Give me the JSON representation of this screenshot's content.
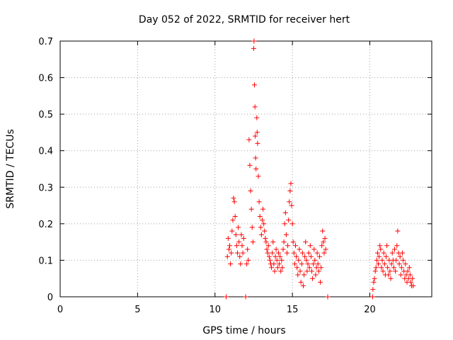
{
  "chart_data": {
    "type": "scatter",
    "title": "Day 052 of 2022, SRMTID for receiver hert",
    "xlabel": "GPS time / hours",
    "ylabel": "SRMTID / TECUs",
    "xlim": [
      0,
      24
    ],
    "ylim": [
      0,
      0.7
    ],
    "xticks": [
      0,
      5,
      10,
      15,
      20
    ],
    "xtick_labels": [
      "0",
      "5",
      "10",
      "15",
      "20"
    ],
    "yticks": [
      0,
      0.1,
      0.2,
      0.3,
      0.4,
      0.5,
      0.6,
      0.7
    ],
    "ytick_labels": [
      "0",
      "0.1",
      "0.2",
      "0.3",
      "0.4",
      "0.5",
      "0.6",
      "0.7"
    ],
    "grid": true,
    "legend": "none",
    "marker": "plus",
    "marker_color": "#ff0000",
    "series": [
      {
        "values": [
          [
            10.72,
            0.0
          ],
          [
            11.98,
            0.0
          ],
          [
            17.28,
            0.0
          ],
          [
            20.18,
            0.0
          ],
          [
            10.8,
            0.11
          ],
          [
            10.85,
            0.16
          ],
          [
            10.9,
            0.13
          ],
          [
            10.95,
            0.14
          ],
          [
            11.0,
            0.09
          ],
          [
            11.05,
            0.12
          ],
          [
            11.1,
            0.18
          ],
          [
            11.15,
            0.21
          ],
          [
            11.2,
            0.27
          ],
          [
            11.25,
            0.26
          ],
          [
            11.3,
            0.22
          ],
          [
            11.35,
            0.17
          ],
          [
            11.4,
            0.14
          ],
          [
            11.45,
            0.12
          ],
          [
            11.5,
            0.19
          ],
          [
            11.55,
            0.15
          ],
          [
            11.6,
            0.11
          ],
          [
            11.65,
            0.09
          ],
          [
            11.7,
            0.17
          ],
          [
            11.75,
            0.14
          ],
          [
            11.8,
            0.12
          ],
          [
            11.85,
            0.16
          ],
          [
            12.05,
            0.09
          ],
          [
            12.1,
            0.13
          ],
          [
            12.15,
            0.1
          ],
          [
            12.2,
            0.43
          ],
          [
            12.25,
            0.36
          ],
          [
            12.3,
            0.29
          ],
          [
            12.35,
            0.24
          ],
          [
            12.4,
            0.19
          ],
          [
            12.45,
            0.15
          ],
          [
            12.5,
            0.68
          ],
          [
            12.52,
            0.7
          ],
          [
            12.55,
            0.58
          ],
          [
            12.58,
            0.52
          ],
          [
            12.6,
            0.44
          ],
          [
            12.62,
            0.38
          ],
          [
            12.65,
            0.35
          ],
          [
            12.7,
            0.49
          ],
          [
            12.72,
            0.45
          ],
          [
            12.75,
            0.42
          ],
          [
            12.8,
            0.33
          ],
          [
            12.85,
            0.26
          ],
          [
            12.9,
            0.22
          ],
          [
            12.95,
            0.19
          ],
          [
            13.0,
            0.17
          ],
          [
            13.05,
            0.21
          ],
          [
            13.1,
            0.24
          ],
          [
            13.15,
            0.2
          ],
          [
            13.2,
            0.18
          ],
          [
            13.25,
            0.16
          ],
          [
            13.3,
            0.15
          ],
          [
            13.35,
            0.13
          ],
          [
            13.4,
            0.12
          ],
          [
            13.45,
            0.14
          ],
          [
            13.5,
            0.11
          ],
          [
            13.55,
            0.1
          ],
          [
            13.6,
            0.09
          ],
          [
            13.65,
            0.08
          ],
          [
            13.7,
            0.12
          ],
          [
            13.75,
            0.15
          ],
          [
            13.8,
            0.09
          ],
          [
            13.85,
            0.07
          ],
          [
            13.9,
            0.11
          ],
          [
            13.95,
            0.13
          ],
          [
            14.0,
            0.1
          ],
          [
            14.05,
            0.08
          ],
          [
            14.1,
            0.12
          ],
          [
            14.15,
            0.09
          ],
          [
            14.2,
            0.11
          ],
          [
            14.25,
            0.07
          ],
          [
            14.3,
            0.1
          ],
          [
            14.35,
            0.08
          ],
          [
            14.4,
            0.13
          ],
          [
            14.45,
            0.15
          ],
          [
            14.5,
            0.2
          ],
          [
            14.55,
            0.23
          ],
          [
            14.6,
            0.17
          ],
          [
            14.65,
            0.12
          ],
          [
            14.7,
            0.14
          ],
          [
            14.75,
            0.21
          ],
          [
            14.8,
            0.26
          ],
          [
            14.85,
            0.29
          ],
          [
            14.9,
            0.31
          ],
          [
            14.95,
            0.25
          ],
          [
            15.0,
            0.2
          ],
          [
            15.05,
            0.15
          ],
          [
            15.1,
            0.12
          ],
          [
            15.15,
            0.09
          ],
          [
            15.2,
            0.14
          ],
          [
            15.25,
            0.11
          ],
          [
            15.3,
            0.08
          ],
          [
            15.35,
            0.06
          ],
          [
            15.4,
            0.1
          ],
          [
            15.45,
            0.13
          ],
          [
            15.5,
            0.07
          ],
          [
            15.55,
            0.04
          ],
          [
            15.6,
            0.09
          ],
          [
            15.65,
            0.12
          ],
          [
            15.7,
            0.03
          ],
          [
            15.75,
            0.06
          ],
          [
            15.8,
            0.11
          ],
          [
            15.85,
            0.15
          ],
          [
            15.9,
            0.1
          ],
          [
            15.95,
            0.07
          ],
          [
            16.0,
            0.09
          ],
          [
            16.05,
            0.12
          ],
          [
            16.1,
            0.08
          ],
          [
            16.15,
            0.14
          ],
          [
            16.2,
            0.11
          ],
          [
            16.25,
            0.07
          ],
          [
            16.3,
            0.05
          ],
          [
            16.35,
            0.09
          ],
          [
            16.4,
            0.13
          ],
          [
            16.45,
            0.1
          ],
          [
            16.5,
            0.06
          ],
          [
            16.55,
            0.08
          ],
          [
            16.6,
            0.12
          ],
          [
            16.65,
            0.09
          ],
          [
            16.7,
            0.07
          ],
          [
            16.75,
            0.11
          ],
          [
            16.8,
            0.04
          ],
          [
            16.85,
            0.08
          ],
          [
            16.9,
            0.14
          ],
          [
            16.95,
            0.18
          ],
          [
            17.0,
            0.15
          ],
          [
            17.05,
            0.12
          ],
          [
            17.1,
            0.16
          ],
          [
            17.15,
            0.13
          ],
          [
            20.2,
            0.02
          ],
          [
            20.25,
            0.04
          ],
          [
            20.3,
            0.05
          ],
          [
            20.35,
            0.07
          ],
          [
            20.4,
            0.08
          ],
          [
            20.45,
            0.1
          ],
          [
            20.5,
            0.12
          ],
          [
            20.55,
            0.09
          ],
          [
            20.6,
            0.11
          ],
          [
            20.65,
            0.14
          ],
          [
            20.7,
            0.13
          ],
          [
            20.75,
            0.08
          ],
          [
            20.8,
            0.1
          ],
          [
            20.85,
            0.07
          ],
          [
            20.9,
            0.12
          ],
          [
            20.95,
            0.09
          ],
          [
            21.0,
            0.06
          ],
          [
            21.05,
            0.11
          ],
          [
            21.1,
            0.14
          ],
          [
            21.15,
            0.08
          ],
          [
            21.2,
            0.06
          ],
          [
            21.25,
            0.1
          ],
          [
            21.3,
            0.07
          ],
          [
            21.35,
            0.05
          ],
          [
            21.4,
            0.09
          ],
          [
            21.45,
            0.12
          ],
          [
            21.5,
            0.1
          ],
          [
            21.55,
            0.08
          ],
          [
            21.6,
            0.13
          ],
          [
            21.65,
            0.07
          ],
          [
            21.7,
            0.1
          ],
          [
            21.75,
            0.14
          ],
          [
            21.8,
            0.18
          ],
          [
            21.85,
            0.12
          ],
          [
            21.9,
            0.09
          ],
          [
            21.95,
            0.11
          ],
          [
            22.0,
            0.06
          ],
          [
            22.05,
            0.08
          ],
          [
            22.1,
            0.12
          ],
          [
            22.15,
            0.1
          ],
          [
            22.2,
            0.07
          ],
          [
            22.25,
            0.05
          ],
          [
            22.3,
            0.09
          ],
          [
            22.35,
            0.06
          ],
          [
            22.4,
            0.04
          ],
          [
            22.45,
            0.07
          ],
          [
            22.5,
            0.05
          ],
          [
            22.55,
            0.08
          ],
          [
            22.6,
            0.06
          ],
          [
            22.65,
            0.04
          ],
          [
            22.7,
            0.03
          ],
          [
            22.75,
            0.05
          ],
          [
            22.8,
            0.03
          ]
        ]
      }
    ]
  }
}
